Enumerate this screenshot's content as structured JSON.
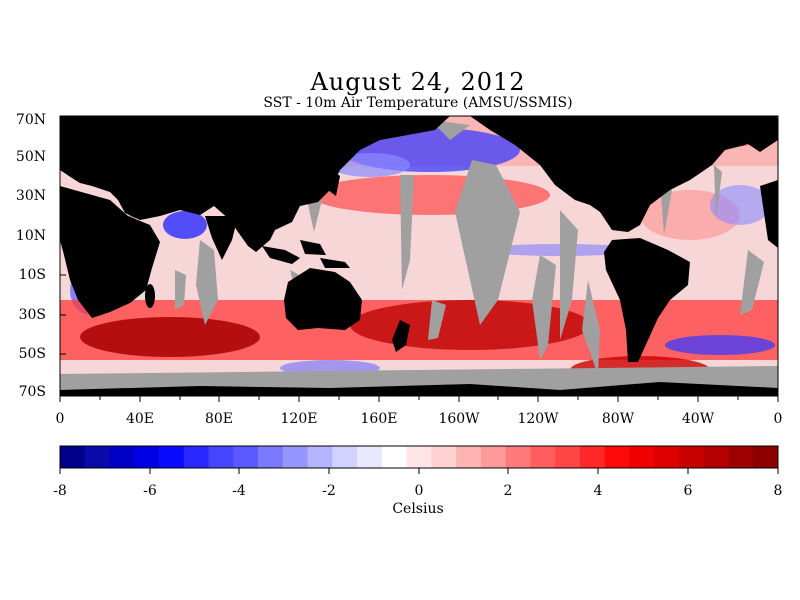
{
  "title": "August 24, 2012",
  "subtitle": "SST - 10m Air Temperature (AMSU/SSMIS)",
  "lat_labels": [
    "70N",
    "50N",
    "30N",
    "10N",
    "10S",
    "30S",
    "50S",
    "70S"
  ],
  "lon_labels": [
    "0",
    "40E",
    "80E",
    "120E",
    "160E",
    "160W",
    "120W",
    "80W",
    "40W",
    "0"
  ],
  "colorbar": {
    "ticks": [
      "-8",
      "-6",
      "-4",
      "-2",
      "0",
      "2",
      "4",
      "6",
      "8"
    ],
    "range": [
      -8,
      8
    ],
    "units": "Celsius",
    "colors": [
      "#00008c",
      "#0a0aa8",
      "#0000c8",
      "#0000e6",
      "#0a0aff",
      "#2828ff",
      "#4646ff",
      "#5a5aff",
      "#7a7aff",
      "#9696ff",
      "#b4b4ff",
      "#d2d2ff",
      "#e8e8ff",
      "#ffffff",
      "#ffe6e6",
      "#ffd2d2",
      "#ffb4b4",
      "#ff9a9a",
      "#ff7a7a",
      "#ff5e5e",
      "#ff4646",
      "#ff2828",
      "#ff0a0a",
      "#f00000",
      "#dc0000",
      "#c80000",
      "#b40000",
      "#9c0000",
      "#8c0000"
    ]
  },
  "map_colors": {
    "land": "#000000",
    "no_data": "#a0a0a0"
  }
}
